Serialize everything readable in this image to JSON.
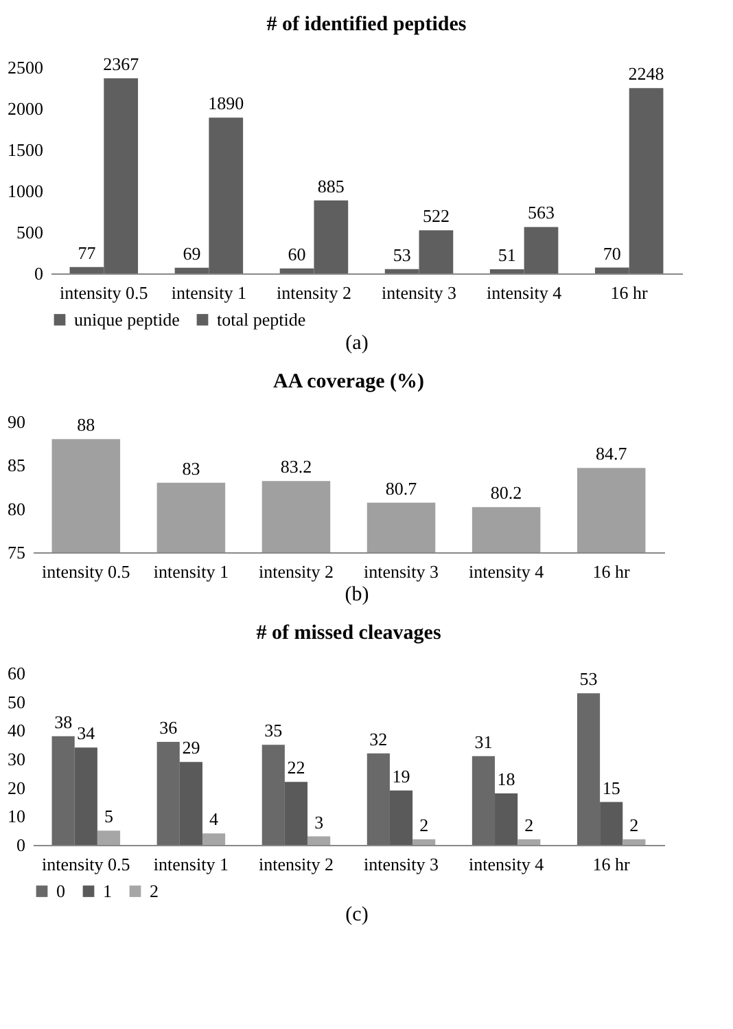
{
  "chart_data": [
    {
      "type": "bar",
      "title": "# of identified peptides",
      "categories": [
        "intensity 0.5",
        "intensity 1",
        "intensity 2",
        "intensity 3",
        "intensity 4",
        "16 hr"
      ],
      "series": [
        {
          "name": "unique peptide",
          "color": "#5f5f5f",
          "values": [
            77,
            69,
            60,
            53,
            51,
            70
          ]
        },
        {
          "name": "total peptide",
          "color": "#5f5f5f",
          "values": [
            2367,
            1890,
            885,
            522,
            563,
            2248
          ]
        }
      ],
      "ylim": [
        0,
        2500
      ],
      "yticks": [
        0,
        500,
        1000,
        1500,
        2000,
        2500
      ],
      "data_labels": true,
      "legend": "bottom",
      "annotations": [
        "(a)"
      ]
    },
    {
      "type": "bar",
      "title": "AA coverage (%)",
      "categories": [
        "intensity 0.5",
        "intensity 1",
        "intensity 2",
        "intensity 3",
        "intensity 4",
        "16 hr"
      ],
      "series": [
        {
          "color": "#a0a0a0",
          "values": [
            88,
            83,
            83.2,
            80.7,
            80.2,
            84.7
          ]
        }
      ],
      "ylim": [
        75,
        90
      ],
      "yticks": [
        75,
        80,
        85,
        90
      ],
      "data_labels": true,
      "annotations": [
        "(b)"
      ]
    },
    {
      "type": "bar",
      "title": "# of missed cleavages",
      "categories": [
        "intensity 0.5",
        "intensity 1",
        "intensity 2",
        "intensity 3",
        "intensity 4",
        "16 hr"
      ],
      "series": [
        {
          "name": "0",
          "color": "#696969",
          "values": [
            38,
            36,
            35,
            32,
            31,
            53
          ]
        },
        {
          "name": "1",
          "color": "#5a5a5a",
          "values": [
            34,
            29,
            22,
            19,
            18,
            15
          ]
        },
        {
          "name": "2",
          "color": "#a6a6a6",
          "values": [
            5,
            4,
            3,
            2,
            2,
            2
          ]
        }
      ],
      "ylim": [
        0,
        60
      ],
      "yticks": [
        0,
        10,
        20,
        30,
        40,
        50,
        60
      ],
      "data_labels": true,
      "legend": "bottom",
      "annotations": [
        "(c)"
      ]
    }
  ]
}
